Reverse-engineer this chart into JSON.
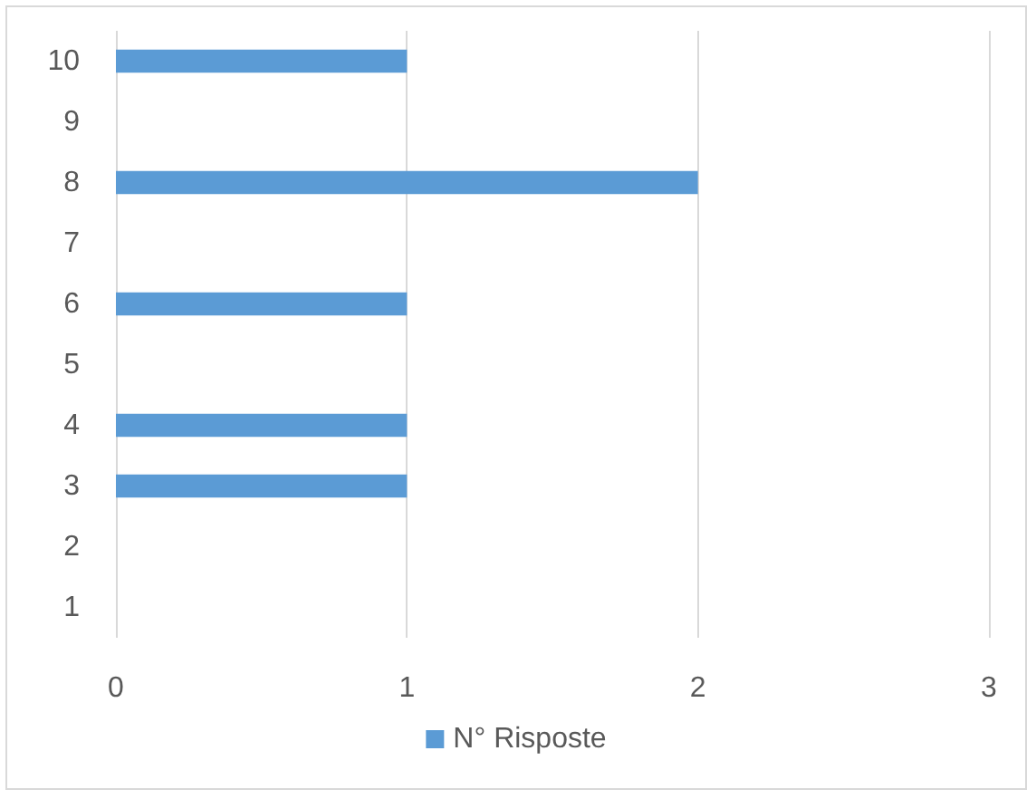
{
  "chart_data": {
    "type": "bar",
    "orientation": "horizontal",
    "categories": [
      "10",
      "9",
      "8",
      "7",
      "6",
      "5",
      "4",
      "3",
      "2",
      "1"
    ],
    "series": [
      {
        "name": "N° Risposte",
        "color": "#5b9bd5",
        "values": [
          1,
          0,
          2,
          0,
          1,
          0,
          1,
          1,
          0,
          0
        ]
      }
    ],
    "xlim": [
      0,
      3
    ],
    "xticks": [
      0,
      1,
      2,
      3
    ],
    "grid": "x",
    "legend": "bottom"
  }
}
